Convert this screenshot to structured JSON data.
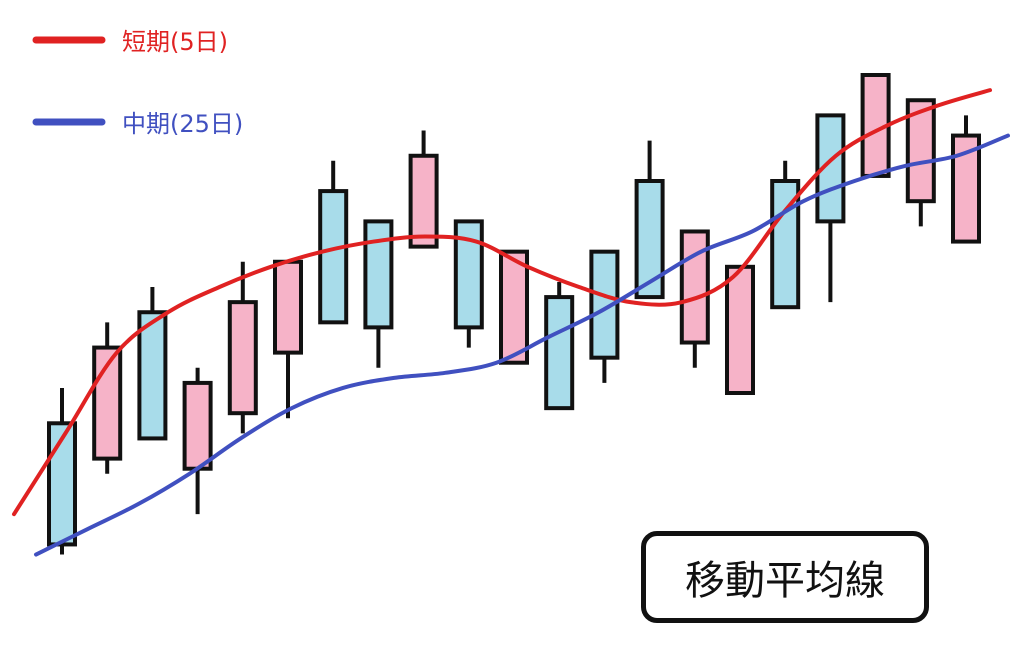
{
  "chart_data": {
    "type": "candlestick",
    "title_badge": "移動平均線",
    "colors": {
      "bullish_fill": "#a8dcea",
      "bearish_fill": "#f6b3c8",
      "outline": "#111111",
      "short_ma": "#e02222",
      "mid_ma": "#4050c0"
    },
    "ylim": [
      0,
      100
    ],
    "candles": [
      {
        "type": "bull",
        "open": 12,
        "close": 36,
        "high": 43,
        "low": 10
      },
      {
        "type": "bear",
        "open": 51,
        "close": 29,
        "high": 56,
        "low": 26
      },
      {
        "type": "bull",
        "open": 33,
        "close": 58,
        "high": 63,
        "low": 33
      },
      {
        "type": "bear",
        "open": 44,
        "close": 27,
        "high": 47,
        "low": 18
      },
      {
        "type": "bear",
        "open": 60,
        "close": 38,
        "high": 68,
        "low": 34
      },
      {
        "type": "bear",
        "open": 68,
        "close": 50,
        "high": 68,
        "low": 37
      },
      {
        "type": "bull",
        "open": 56,
        "close": 82,
        "high": 88,
        "low": 56
      },
      {
        "type": "bull",
        "open": 55,
        "close": 76,
        "high": 76,
        "low": 47
      },
      {
        "type": "bear",
        "open": 89,
        "close": 71,
        "high": 94,
        "low": 71
      },
      {
        "type": "bull",
        "open": 55,
        "close": 76,
        "high": 76,
        "low": 51
      },
      {
        "type": "bear",
        "open": 70,
        "close": 48,
        "high": 70,
        "low": 48
      },
      {
        "type": "bull",
        "open": 39,
        "close": 61,
        "high": 64,
        "low": 39
      },
      {
        "type": "bull",
        "open": 49,
        "close": 70,
        "high": 70,
        "low": 44
      },
      {
        "type": "bull",
        "open": 61,
        "close": 84,
        "high": 92,
        "low": 61
      },
      {
        "type": "bear",
        "open": 74,
        "close": 52,
        "high": 74,
        "low": 47
      },
      {
        "type": "bear",
        "open": 67,
        "close": 42,
        "high": 67,
        "low": 42
      },
      {
        "type": "bull",
        "open": 59,
        "close": 84,
        "high": 88,
        "low": 59
      },
      {
        "type": "bull",
        "open": 76,
        "close": 97,
        "high": 97,
        "low": 60
      },
      {
        "type": "bear",
        "open": 105,
        "close": 85,
        "high": 105,
        "low": 85
      },
      {
        "type": "bear",
        "open": 100,
        "close": 80,
        "high": 100,
        "low": 75
      },
      {
        "type": "bear",
        "open": 93,
        "close": 72,
        "high": 97,
        "low": 72
      }
    ],
    "series": [
      {
        "name": "短期(5日)",
        "color": "#e02222",
        "values": [
          18,
          34,
          50,
          58,
          63,
          67,
          70,
          72,
          73,
          72,
          67,
          63,
          60,
          60,
          65,
          78,
          89,
          95,
          99,
          102
        ]
      },
      {
        "name": "中期(25日)",
        "color": "#4050c0",
        "values": [
          10,
          15,
          20,
          26,
          33,
          39,
          43,
          45,
          46,
          48,
          53,
          58,
          64,
          70,
          74,
          80,
          84,
          87,
          89,
          93
        ]
      }
    ]
  }
}
